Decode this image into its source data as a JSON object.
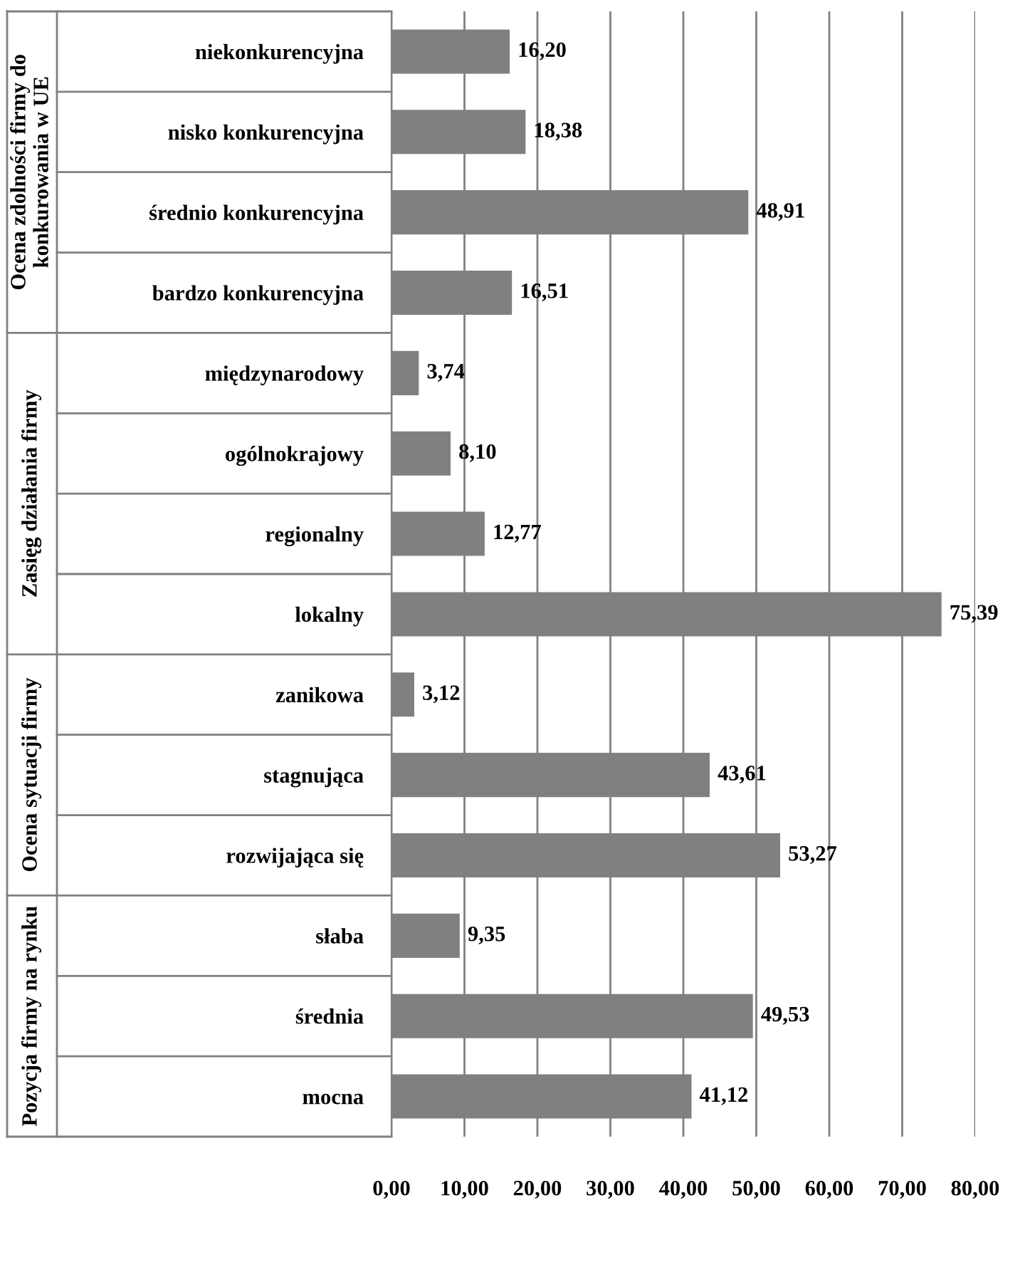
{
  "chart_data": {
    "type": "bar",
    "orientation": "horizontal",
    "categories": [
      "niekonkurencyjna",
      "nisko konkurencyjna",
      "średnio konkurencyjna",
      "bardzo konkurencyjna",
      "międzynarodowy",
      "ogólnokrajowy",
      "regionalny",
      "lokalny",
      "zanikowa",
      "stagnująca",
      "rozwijająca się",
      "słaba",
      "średnia",
      "mocna"
    ],
    "values": [
      16.2,
      18.38,
      48.91,
      16.51,
      3.74,
      8.1,
      12.77,
      75.39,
      3.12,
      43.61,
      53.27,
      9.35,
      49.53,
      41.12
    ],
    "value_labels": [
      "16,20",
      "18,38",
      "48,91",
      "16,51",
      "3,74",
      "8,10",
      "12,77",
      "75,39",
      "3,12",
      "43,61",
      "53,27",
      "9,35",
      "49,53",
      "41,12"
    ],
    "color": "#808080",
    "xlim": [
      0,
      80
    ],
    "xticks": [
      {
        "value": 0,
        "label": "0,00"
      },
      {
        "value": 10,
        "label": "10,00"
      },
      {
        "value": 20,
        "label": "20,00"
      },
      {
        "value": 30,
        "label": "30,00"
      },
      {
        "value": 40,
        "label": "40,00"
      },
      {
        "value": 50,
        "label": "50,00"
      },
      {
        "value": 60,
        "label": "60,00"
      },
      {
        "value": 70,
        "label": "70,00"
      },
      {
        "value": 80,
        "label": "80,00"
      }
    ],
    "grid": "x",
    "annotations": [
      "Ocena zdolności firmy do konkurowania w UE",
      "Zasięg działania firmy",
      "Ocena sytuacji firmy",
      "Pozycja firmy na rynku"
    ]
  }
}
